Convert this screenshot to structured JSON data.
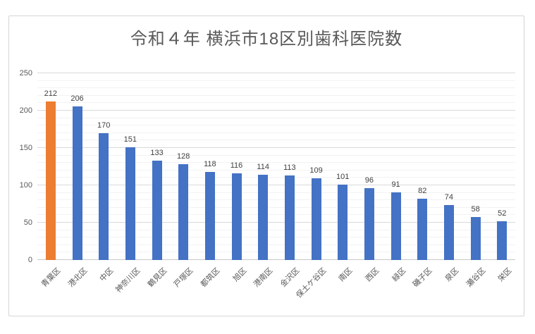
{
  "chart": {
    "title": "令和４年 横浜市18区別歯科医院数"
  },
  "chart_data": {
    "type": "bar",
    "title": "令和４年 横浜市18区別歯科医院数",
    "categories": [
      "青葉区",
      "港北区",
      "中区",
      "神奈川区",
      "鶴見区",
      "戸塚区",
      "都筑区",
      "旭区",
      "港南区",
      "金沢区",
      "保土ケ谷区",
      "南区",
      "西区",
      "緑区",
      "磯子区",
      "泉区",
      "瀬谷区",
      "栄区"
    ],
    "values": [
      212,
      206,
      170,
      151,
      133,
      128,
      118,
      116,
      114,
      113,
      109,
      101,
      96,
      91,
      82,
      74,
      58,
      52
    ],
    "xlabel": "",
    "ylabel": "",
    "ylim": [
      0,
      250
    ],
    "yticks": [
      0,
      50,
      100,
      150,
      200,
      250
    ],
    "major_unit": 50,
    "minor_unit": 10,
    "grid": "major+minor horizontal",
    "legend": "none",
    "data_labels": "outside-end",
    "category_label_rotation_deg": -45,
    "colors": {
      "bar_default": "#4472C4",
      "bar_highlight": "#ED7D31",
      "highlight_index": 0,
      "title_text": "#595959",
      "axis_text": "#595959",
      "data_label_text": "#404040",
      "major_gridline": "#D9D9D9",
      "minor_gridline": "#F2F2F2"
    }
  }
}
